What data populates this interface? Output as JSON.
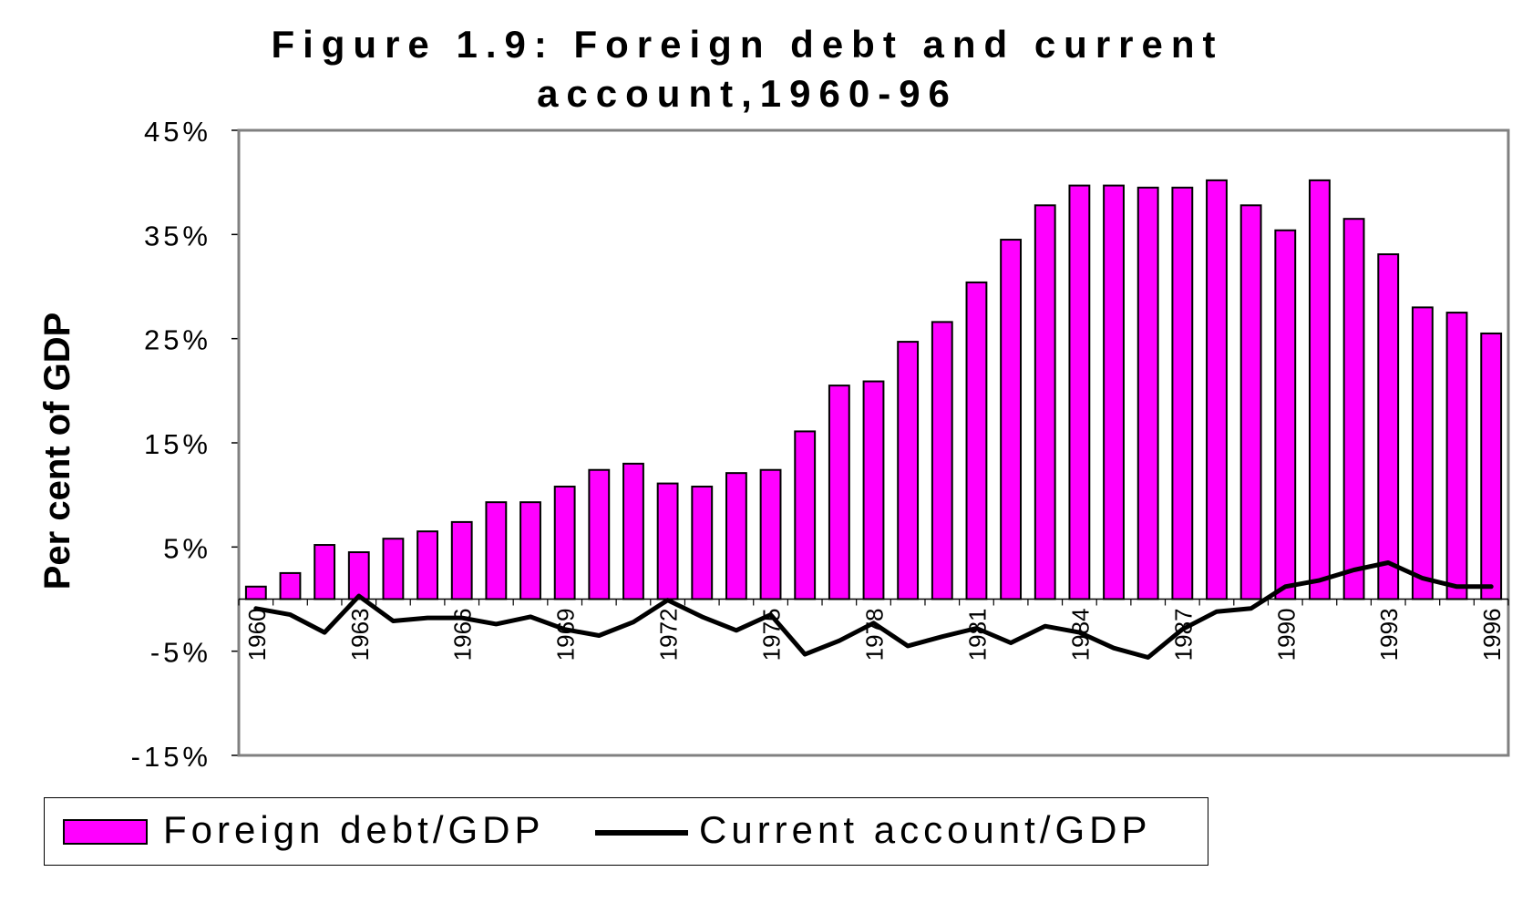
{
  "chart_data": {
    "type": "bar",
    "title": [
      "Figure 1.9: Foreign debt and current",
      "account,1960-96"
    ],
    "ylabel": "Per cent of GDP",
    "xlabel": "",
    "ylim": [
      -15,
      45
    ],
    "yticks": [
      45,
      35,
      25,
      15,
      5,
      -5,
      -15
    ],
    "ytick_labels": [
      "45%",
      "35%",
      "25%",
      "15%",
      "5%",
      "-5%",
      "-15%"
    ],
    "categories": [
      "1960",
      "1961",
      "1962",
      "1963",
      "1964",
      "1965",
      "1966",
      "1967",
      "1968",
      "1969",
      "1970",
      "1971",
      "1972",
      "1973",
      "1974",
      "1975",
      "1976",
      "1977",
      "1978",
      "1979",
      "1980",
      "1981",
      "1982",
      "1983",
      "1984",
      "1985",
      "1986",
      "1987",
      "1988",
      "1989",
      "1990",
      "1991",
      "1992",
      "1993",
      "1994",
      "1995",
      "1996"
    ],
    "xtick_labels": [
      "1960",
      "1963",
      "1966",
      "1969",
      "1972",
      "1975",
      "1978",
      "1981",
      "1984",
      "1987",
      "1990",
      "1993",
      "1996"
    ],
    "legend_position": "bottom",
    "series": [
      {
        "name": "Foreign debt/GDP",
        "type": "bar",
        "color": "#ff00ff",
        "values": [
          1.2,
          2.5,
          5.2,
          4.5,
          5.8,
          6.5,
          7.4,
          9.3,
          9.3,
          10.8,
          12.4,
          13.0,
          11.1,
          10.8,
          12.1,
          12.4,
          16.1,
          20.5,
          20.9,
          24.7,
          26.6,
          30.4,
          34.5,
          37.8,
          39.7,
          39.7,
          39.5,
          39.5,
          40.2,
          37.8,
          35.4,
          40.2,
          36.5,
          33.1,
          28.0,
          27.5,
          25.5
        ]
      },
      {
        "name": "Current account/GDP",
        "type": "line",
        "color": "#000000",
        "values": [
          -0.9,
          -1.5,
          -3.2,
          0.3,
          -2.1,
          -1.8,
          -1.8,
          -2.4,
          -1.7,
          -2.9,
          -3.5,
          -2.2,
          -0.1,
          -1.7,
          -3.0,
          -1.5,
          -5.3,
          -4.0,
          -2.3,
          -4.5,
          -3.6,
          -2.8,
          -4.2,
          -2.6,
          -3.2,
          -4.7,
          -5.6,
          -2.9,
          -1.2,
          -0.9,
          1.2,
          1.8,
          2.8,
          3.5,
          2.0,
          1.2,
          1.2
        ]
      }
    ]
  }
}
